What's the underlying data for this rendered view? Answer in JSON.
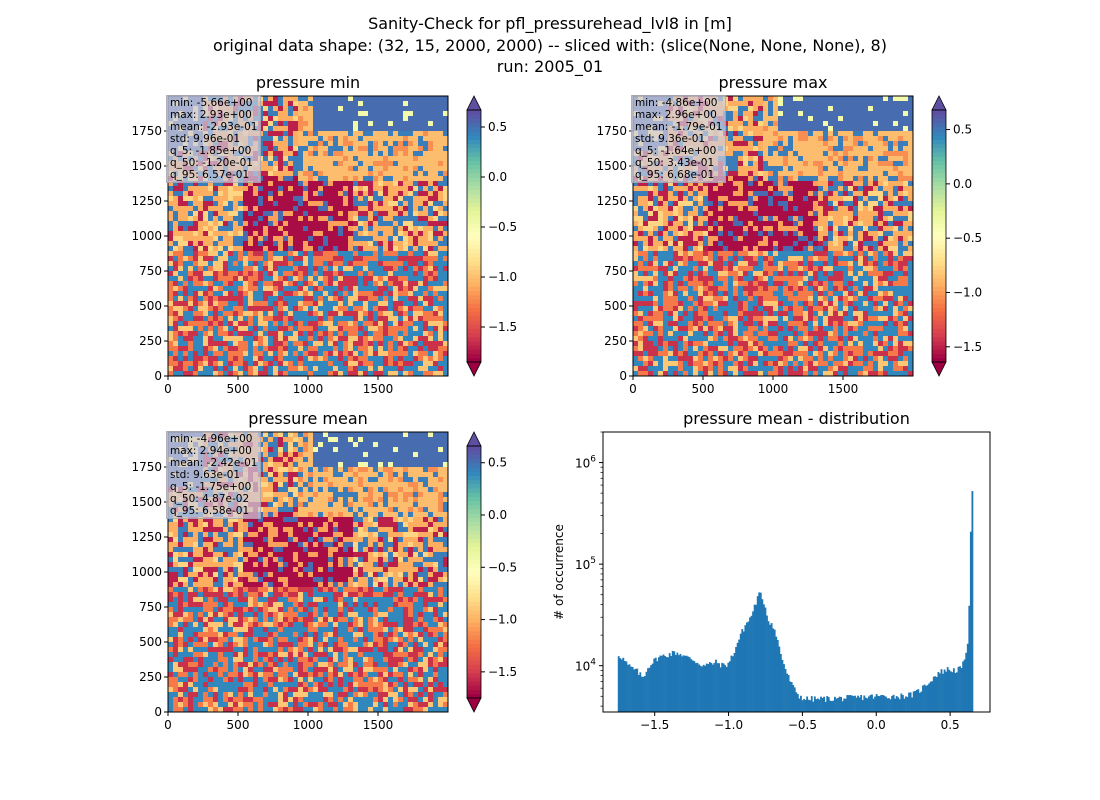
{
  "figure": {
    "suptitle_lines": [
      "Sanity-Check for pfl_pressurehead_lvl8 in [m]",
      "original data shape: (32, 15, 2000, 2000) -- sliced with: (slice(None, None, None), 8)",
      "run: 2005_01"
    ]
  },
  "chart_data": [
    {
      "type": "heatmap",
      "title": "pressure min",
      "colormap": "Spectral",
      "xticks": [
        0,
        500,
        1000,
        1500
      ],
      "yticks": [
        0,
        250,
        500,
        750,
        1000,
        1250,
        1500,
        1750
      ],
      "xlim": [
        0,
        2000
      ],
      "ylim": [
        0,
        2000
      ],
      "colorbar": {
        "ticks": [
          0.5,
          0.0,
          -0.5,
          -1.0,
          -1.5
        ],
        "tick_labels": [
          "0.5",
          "0.0",
          "−0.5",
          "−1.0",
          "−1.5"
        ],
        "range": [
          -1.85,
          0.67
        ],
        "extend": "both"
      },
      "stats": [
        "min: -5.66e+00",
        "max: 2.93e+00",
        "mean: -2.93e-01",
        "std: 9.96e-01",
        "q_5: -1.85e+00",
        "q_50: -1.20e-01",
        "q_95: 6.57e-01"
      ]
    },
    {
      "type": "heatmap",
      "title": "pressure max",
      "colormap": "Spectral",
      "xticks": [
        0,
        500,
        1000,
        1500
      ],
      "yticks": [
        0,
        250,
        500,
        750,
        1000,
        1250,
        1500,
        1750
      ],
      "xlim": [
        0,
        2000
      ],
      "ylim": [
        0,
        2000
      ],
      "colorbar": {
        "ticks": [
          0.5,
          0.0,
          -0.5,
          -1.0,
          -1.5
        ],
        "tick_labels": [
          "0.5",
          "0.0",
          "−0.5",
          "−1.0",
          "−1.5"
        ],
        "range": [
          -1.64,
          0.68
        ],
        "extend": "both"
      },
      "stats": [
        "min: -4.86e+00",
        "max: 2.96e+00",
        "mean: -1.79e-01",
        "std: 9.36e-01",
        "q_5: -1.64e+00",
        "q_50: 3.43e-01",
        "q_95: 6.68e-01"
      ]
    },
    {
      "type": "heatmap",
      "title": "pressure mean",
      "colormap": "Spectral",
      "xticks": [
        0,
        500,
        1000,
        1500
      ],
      "yticks": [
        0,
        250,
        500,
        750,
        1000,
        1250,
        1500,
        1750
      ],
      "xlim": [
        0,
        2000
      ],
      "ylim": [
        0,
        2000
      ],
      "colorbar": {
        "ticks": [
          0.5,
          0.0,
          -0.5,
          -1.0,
          -1.5
        ],
        "tick_labels": [
          "0.5",
          "0.0",
          "−0.5",
          "−1.0",
          "−1.5"
        ],
        "range": [
          -1.75,
          0.66
        ],
        "extend": "both"
      },
      "stats": [
        "min: -4.96e+00",
        "max: 2.94e+00",
        "mean: -2.42e-01",
        "std: 9.63e-01",
        "q_5: -1.75e+00",
        "q_50: 4.87e-02",
        "q_95: 6.58e-01"
      ]
    },
    {
      "type": "bar",
      "subtype": "histogram",
      "title": "pressure mean - distribution",
      "xlabel": "",
      "ylabel": "# of occurrence",
      "yscale": "log",
      "xlim": [
        -1.85,
        0.77
      ],
      "ylim": [
        3500,
        2000000
      ],
      "xticks": [
        -1.5,
        -1.0,
        -0.5,
        0.0,
        0.5
      ],
      "xtick_labels": [
        "−1.5",
        "−1.0",
        "−0.5",
        "0.0",
        "0.5"
      ],
      "yticks": [
        10000,
        100000,
        1000000
      ],
      "ytick_labels": [
        "10^4",
        "10^5",
        "10^6"
      ],
      "bar_color": "#1f77b4",
      "control_points": [
        [
          -1.75,
          13000
        ],
        [
          -1.72,
          12000
        ],
        [
          -1.68,
          10000
        ],
        [
          -1.62,
          8800
        ],
        [
          -1.58,
          7600
        ],
        [
          -1.54,
          10000
        ],
        [
          -1.48,
          12000
        ],
        [
          -1.44,
          12500
        ],
        [
          -1.4,
          13000
        ],
        [
          -1.36,
          13500
        ],
        [
          -1.32,
          13000
        ],
        [
          -1.28,
          12000
        ],
        [
          -1.24,
          11500
        ],
        [
          -1.2,
          10500
        ],
        [
          -1.16,
          10000
        ],
        [
          -1.12,
          10500
        ],
        [
          -1.08,
          10800
        ],
        [
          -1.04,
          10000
        ],
        [
          -1.0,
          10500
        ],
        [
          -0.96,
          14000
        ],
        [
          -0.92,
          20000
        ],
        [
          -0.88,
          26000
        ],
        [
          -0.85,
          30000
        ],
        [
          -0.82,
          40000
        ],
        [
          -0.79,
          52000
        ],
        [
          -0.76,
          42000
        ],
        [
          -0.73,
          28000
        ],
        [
          -0.7,
          25000
        ],
        [
          -0.67,
          18000
        ],
        [
          -0.64,
          12000
        ],
        [
          -0.6,
          8000
        ],
        [
          -0.56,
          6000
        ],
        [
          -0.52,
          5000
        ],
        [
          -0.48,
          4700
        ],
        [
          -0.4,
          4700
        ],
        [
          -0.2,
          4800
        ],
        [
          0.0,
          5000
        ],
        [
          0.15,
          5000
        ],
        [
          0.25,
          5200
        ],
        [
          0.3,
          5800
        ],
        [
          0.36,
          7000
        ],
        [
          0.42,
          8500
        ],
        [
          0.48,
          9200
        ],
        [
          0.54,
          9000
        ],
        [
          0.58,
          9500
        ],
        [
          0.6,
          12000
        ],
        [
          0.62,
          18000
        ],
        [
          0.63,
          40000
        ],
        [
          0.64,
          220000
        ],
        [
          0.645,
          1200000
        ],
        [
          0.655,
          220000
        ]
      ]
    }
  ]
}
